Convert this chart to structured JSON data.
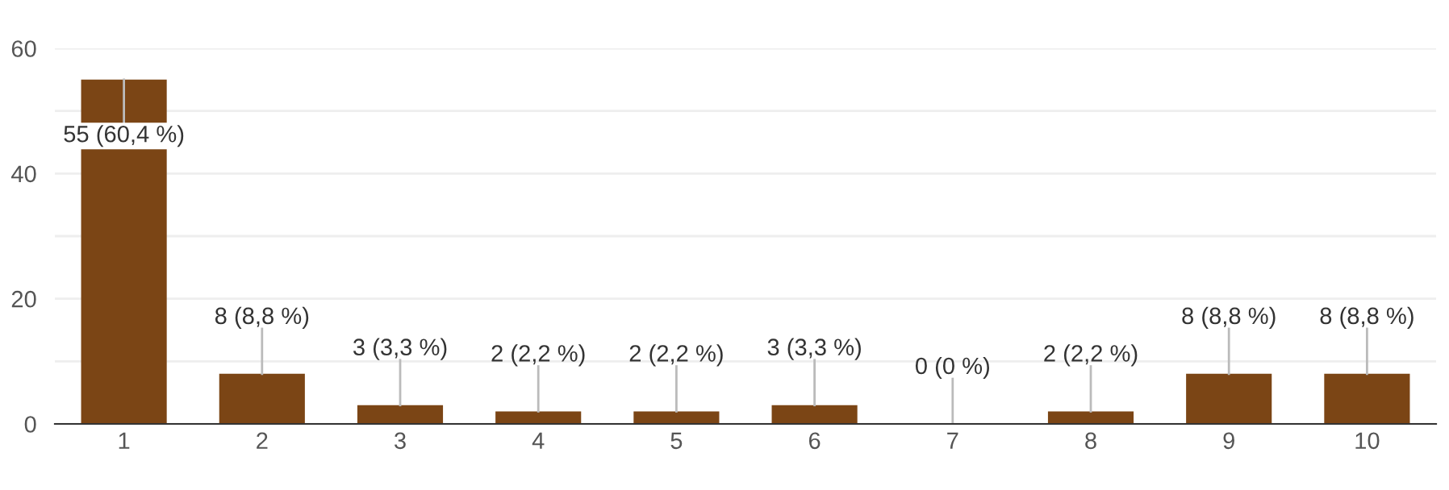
{
  "chart_data": {
    "type": "bar",
    "categories": [
      "1",
      "2",
      "3",
      "4",
      "5",
      "6",
      "7",
      "8",
      "9",
      "10"
    ],
    "values": [
      55,
      8,
      3,
      2,
      2,
      3,
      0,
      2,
      8,
      8
    ],
    "value_labels": [
      "55 (60,4 %)",
      "8 (8,8 %)",
      "3 (3,3 %)",
      "2 (2,2 %)",
      "2 (2,2 %)",
      "3 (3,3 %)",
      "0 (0 %)",
      "2 (2,2 %)",
      "8 (8,8 %)",
      "8 (8,8 %)"
    ],
    "color": "#7b4515",
    "ylim": [
      0,
      60
    ],
    "yticks": [
      0,
      {
        "value": 10,
        "label": null
      },
      20,
      {
        "value": 30,
        "label": null
      },
      40,
      {
        "value": 50,
        "label": null
      },
      60
    ],
    "grid": "y",
    "legend": false
  }
}
